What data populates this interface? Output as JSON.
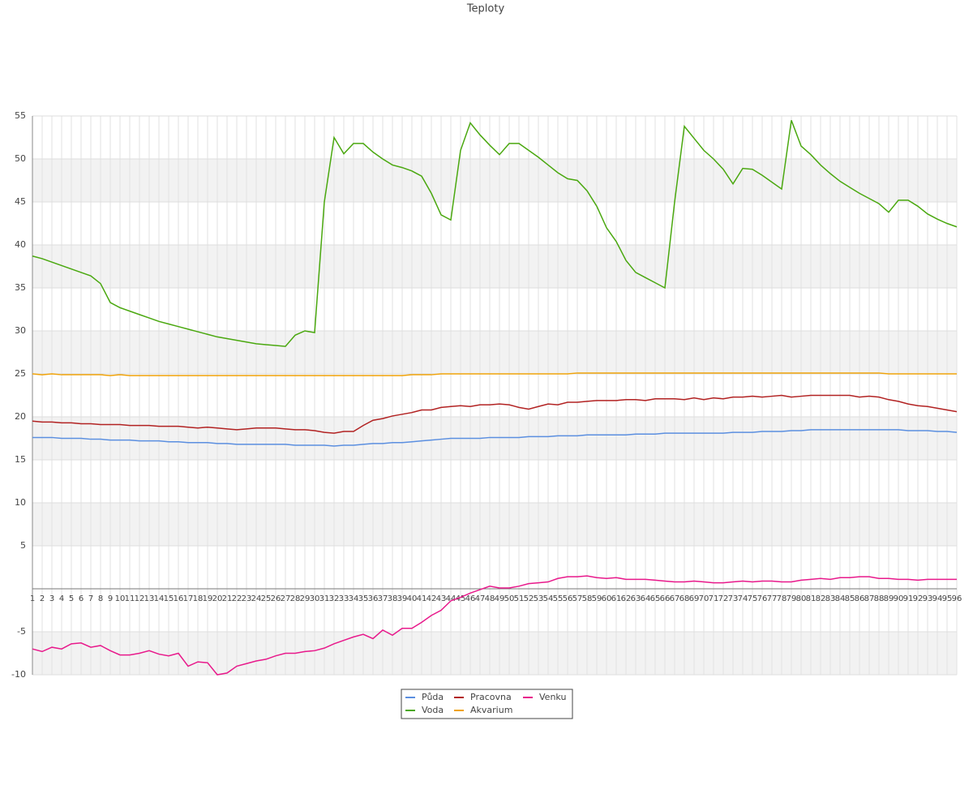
{
  "chart_data": {
    "type": "line",
    "title": "Teploty",
    "categories": [
      "1",
      "2",
      "3",
      "4",
      "5",
      "6",
      "7",
      "8",
      "9",
      "10",
      "11",
      "12",
      "13",
      "14",
      "15",
      "16",
      "17",
      "18",
      "19",
      "20",
      "21",
      "22",
      "23",
      "24",
      "25",
      "26",
      "27",
      "28",
      "29",
      "30",
      "31",
      "32",
      "33",
      "34",
      "35",
      "36",
      "37",
      "38",
      "39",
      "40",
      "41",
      "42",
      "43",
      "44",
      "45",
      "46",
      "47",
      "48",
      "49",
      "50",
      "51",
      "52",
      "53",
      "54",
      "55",
      "56",
      "57",
      "58",
      "59",
      "60",
      "61",
      "62",
      "63",
      "64",
      "65",
      "66",
      "67",
      "68",
      "69",
      "70",
      "71",
      "72",
      "73",
      "74",
      "75",
      "76",
      "77",
      "78",
      "79",
      "80",
      "81",
      "82",
      "83",
      "84",
      "85",
      "86",
      "87",
      "88",
      "89",
      "90",
      "91",
      "92",
      "93",
      "94",
      "95",
      "96"
    ],
    "series": [
      {
        "name": "Půda",
        "color": "#5b8fe0",
        "values": [
          17.6,
          17.6,
          17.6,
          17.5,
          17.5,
          17.5,
          17.4,
          17.4,
          17.3,
          17.3,
          17.3,
          17.2,
          17.2,
          17.2,
          17.1,
          17.1,
          17.0,
          17.0,
          17.0,
          16.9,
          16.9,
          16.8,
          16.8,
          16.8,
          16.8,
          16.8,
          16.8,
          16.7,
          16.7,
          16.7,
          16.7,
          16.6,
          16.7,
          16.7,
          16.8,
          16.9,
          16.9,
          17.0,
          17.0,
          17.1,
          17.2,
          17.3,
          17.4,
          17.5,
          17.5,
          17.5,
          17.5,
          17.6,
          17.6,
          17.6,
          17.6,
          17.7,
          17.7,
          17.7,
          17.8,
          17.8,
          17.8,
          17.9,
          17.9,
          17.9,
          17.9,
          17.9,
          18.0,
          18.0,
          18.0,
          18.1,
          18.1,
          18.1,
          18.1,
          18.1,
          18.1,
          18.1,
          18.2,
          18.2,
          18.2,
          18.3,
          18.3,
          18.3,
          18.4,
          18.4,
          18.5,
          18.5,
          18.5,
          18.5,
          18.5,
          18.5,
          18.5,
          18.5,
          18.5,
          18.5,
          18.4,
          18.4,
          18.4,
          18.3,
          18.3,
          18.2
        ]
      },
      {
        "name": "Voda",
        "color": "#4aa80f",
        "values": [
          38.7,
          38.4,
          38.0,
          37.6,
          37.2,
          36.8,
          36.4,
          35.5,
          33.3,
          32.7,
          32.3,
          31.9,
          31.5,
          31.1,
          30.8,
          30.5,
          30.2,
          29.9,
          29.6,
          29.3,
          29.1,
          28.9,
          28.7,
          28.5,
          28.4,
          28.3,
          28.2,
          29.5,
          30.0,
          29.8,
          45,
          52.5,
          50.6,
          51.8,
          51.8,
          50.8,
          50.0,
          49.3,
          49.0,
          48.6,
          48.0,
          46.0,
          43.5,
          42.9,
          51.0,
          54.2,
          52.8,
          51.6,
          50.5,
          51.8,
          51.8,
          51.0,
          50.2,
          49.3,
          48.4,
          47.7,
          47.5,
          46.3,
          44.5,
          42.0,
          40.4,
          38.2,
          36.8,
          36.2,
          35.6,
          35.0,
          45.0,
          53.8,
          52.4,
          51.0,
          50.0,
          48.8,
          47.1,
          48.9,
          48.8,
          48.1,
          47.3,
          46.5,
          54.5,
          51.5,
          50.5,
          49.3,
          48.3,
          47.4,
          46.7,
          46.0,
          45.4,
          44.8,
          43.8,
          45.2,
          45.2,
          44.5,
          43.6,
          43.0,
          42.5,
          42.1
        ]
      },
      {
        "name": "Pracovna",
        "color": "#b22222",
        "values": [
          19.5,
          19.4,
          19.4,
          19.3,
          19.3,
          19.2,
          19.2,
          19.1,
          19.1,
          19.1,
          19.0,
          19.0,
          19.0,
          18.9,
          18.9,
          18.9,
          18.8,
          18.7,
          18.8,
          18.7,
          18.6,
          18.5,
          18.6,
          18.7,
          18.7,
          18.7,
          18.6,
          18.5,
          18.5,
          18.4,
          18.2,
          18.1,
          18.3,
          18.3,
          19.0,
          19.6,
          19.8,
          20.1,
          20.3,
          20.5,
          20.8,
          20.8,
          21.1,
          21.2,
          21.3,
          21.2,
          21.4,
          21.4,
          21.5,
          21.4,
          21.1,
          20.9,
          21.2,
          21.5,
          21.4,
          21.7,
          21.7,
          21.8,
          21.9,
          21.9,
          21.9,
          22.0,
          22.0,
          21.9,
          22.1,
          22.1,
          22.1,
          22.0,
          22.2,
          22.0,
          22.2,
          22.1,
          22.3,
          22.3,
          22.4,
          22.3,
          22.4,
          22.5,
          22.3,
          22.4,
          22.5,
          22.5,
          22.5,
          22.5,
          22.5,
          22.3,
          22.4,
          22.3,
          22.0,
          21.8,
          21.5,
          21.3,
          21.2,
          21.0,
          20.8,
          20.6
        ]
      },
      {
        "name": "Akvarium",
        "color": "#f0a30a",
        "values": [
          25.0,
          24.9,
          25.0,
          24.9,
          24.9,
          24.9,
          24.9,
          24.9,
          24.8,
          24.9,
          24.8,
          24.8,
          24.8,
          24.8,
          24.8,
          24.8,
          24.8,
          24.8,
          24.8,
          24.8,
          24.8,
          24.8,
          24.8,
          24.8,
          24.8,
          24.8,
          24.8,
          24.8,
          24.8,
          24.8,
          24.8,
          24.8,
          24.8,
          24.8,
          24.8,
          24.8,
          24.8,
          24.8,
          24.8,
          24.9,
          24.9,
          24.9,
          25.0,
          25.0,
          25.0,
          25.0,
          25.0,
          25.0,
          25.0,
          25.0,
          25.0,
          25.0,
          25.0,
          25.0,
          25.0,
          25.0,
          25.1,
          25.1,
          25.1,
          25.1,
          25.1,
          25.1,
          25.1,
          25.1,
          25.1,
          25.1,
          25.1,
          25.1,
          25.1,
          25.1,
          25.1,
          25.1,
          25.1,
          25.1,
          25.1,
          25.1,
          25.1,
          25.1,
          25.1,
          25.1,
          25.1,
          25.1,
          25.1,
          25.1,
          25.1,
          25.1,
          25.1,
          25.1,
          25.0,
          25.0,
          25.0,
          25.0,
          25.0,
          25.0,
          25.0,
          25.0
        ]
      },
      {
        "name": "Venku",
        "color": "#e8198b",
        "values": [
          -7.0,
          -7.3,
          -6.8,
          -7.0,
          -6.4,
          -6.3,
          -6.8,
          -6.6,
          -7.2,
          -7.7,
          -7.7,
          -7.5,
          -7.2,
          -7.6,
          -7.8,
          -7.5,
          -9.0,
          -8.5,
          -8.6,
          -10.0,
          -9.8,
          -9.0,
          -8.7,
          -8.4,
          -8.2,
          -7.8,
          -7.5,
          -7.5,
          -7.3,
          -7.2,
          -6.9,
          -6.4,
          -6.0,
          -5.6,
          -5.3,
          -5.8,
          -4.8,
          -5.4,
          -4.6,
          -4.6,
          -3.9,
          -3.1,
          -2.5,
          -1.4,
          -1.0,
          -0.5,
          -0.1,
          0.3,
          0.1,
          0.1,
          0.3,
          0.6,
          0.7,
          0.8,
          1.2,
          1.4,
          1.4,
          1.5,
          1.3,
          1.2,
          1.3,
          1.1,
          1.1,
          1.1,
          1.0,
          0.9,
          0.8,
          0.8,
          0.9,
          0.8,
          0.7,
          0.7,
          0.8,
          0.9,
          0.8,
          0.9,
          0.9,
          0.8,
          0.8,
          1.0,
          1.1,
          1.2,
          1.1,
          1.3,
          1.3,
          1.4,
          1.4,
          1.2,
          1.2,
          1.1,
          1.1,
          1.0,
          1.1,
          1.1,
          1.1,
          1.1
        ]
      }
    ],
    "ylim": [
      -10,
      55
    ],
    "yticks": [
      -10,
      -5,
      5,
      10,
      15,
      20,
      25,
      30,
      35,
      40,
      45,
      50,
      55
    ],
    "grid": true
  }
}
